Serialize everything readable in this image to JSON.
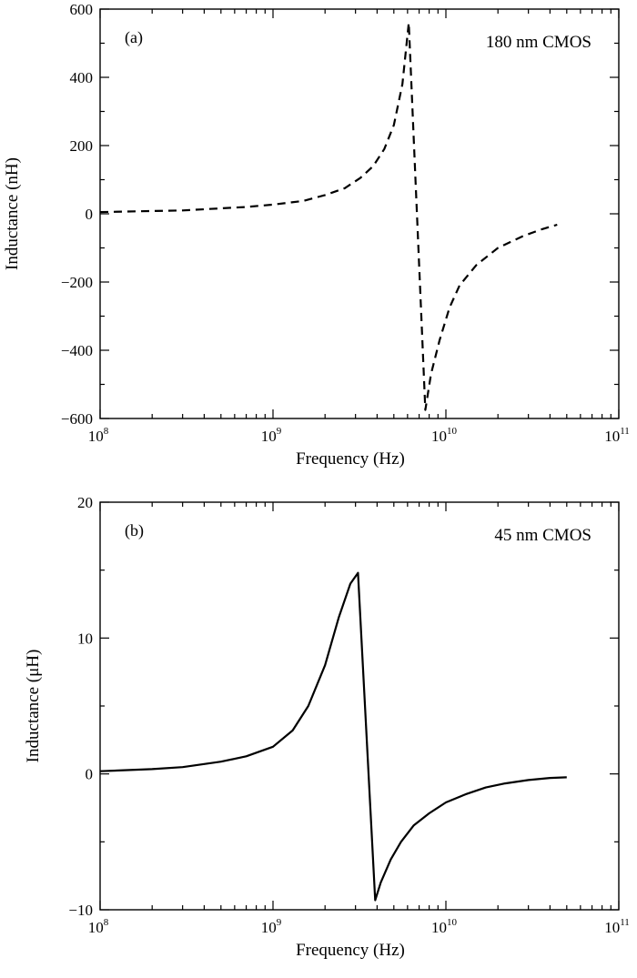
{
  "chart_data": [
    {
      "type": "line",
      "panel_label": "(a)",
      "annotation": "180 nm CMOS",
      "xlabel": "Frequency (Hz)",
      "ylabel": "Inductance  (nH)",
      "xscale": "log",
      "xlim": [
        100000000.0,
        100000000000.0
      ],
      "ylim": [
        -600,
        600
      ],
      "xticks": [
        {
          "base": "10",
          "exp": "8",
          "value": 100000000.0
        },
        {
          "base": "10",
          "exp": "9",
          "value": 1000000000.0
        },
        {
          "base": "10",
          "exp": "10",
          "value": 10000000000.0
        },
        {
          "base": "10",
          "exp": "11",
          "value": 100000000000.0
        }
      ],
      "yticks": [
        "600",
        "400",
        "200",
        "0",
        "−200",
        "−400",
        "−600"
      ],
      "ytick_values": [
        600,
        400,
        200,
        0,
        -200,
        -400,
        -600
      ],
      "line_style": "dashed",
      "series": [
        {
          "x": [
            100000000.0,
            300000000.0,
            700000000.0,
            1000000000.0,
            1500000000.0,
            2000000000.0,
            2600000000.0,
            3200000000.0,
            3800000000.0,
            4400000000.0,
            5000000000.0,
            5600000000.0,
            6100000000.0,
            7600000000.0,
            8200000000.0,
            9200000000.0,
            10500000000.0,
            12000000000.0,
            15000000000.0,
            20000000000.0,
            28000000000.0,
            36000000000.0,
            44000000000.0
          ],
          "y": [
            5,
            10,
            20,
            27,
            38,
            55,
            75,
            105,
            140,
            190,
            260,
            380,
            560,
            -575,
            -470,
            -370,
            -275,
            -210,
            -150,
            -100,
            -65,
            -45,
            -32
          ]
        }
      ]
    },
    {
      "type": "line",
      "panel_label": "(b)",
      "annotation": "45 nm CMOS",
      "xlabel": "Frequency (Hz)",
      "ylabel": "Inductance  (μH)",
      "xscale": "log",
      "xlim": [
        100000000.0,
        100000000000.0
      ],
      "ylim": [
        -10,
        20
      ],
      "xticks": [
        {
          "base": "10",
          "exp": "8",
          "value": 100000000.0
        },
        {
          "base": "10",
          "exp": "9",
          "value": 1000000000.0
        },
        {
          "base": "10",
          "exp": "10",
          "value": 10000000000.0
        },
        {
          "base": "10",
          "exp": "11",
          "value": 100000000000.0
        }
      ],
      "yticks": [
        "20",
        "10",
        "0",
        "−10"
      ],
      "ytick_values": [
        20,
        10,
        0,
        -10
      ],
      "line_style": "solid",
      "series": [
        {
          "x": [
            100000000.0,
            200000000.0,
            300000000.0,
            500000000.0,
            700000000.0,
            1000000000.0,
            1300000000.0,
            1600000000.0,
            2000000000.0,
            2400000000.0,
            2800000000.0,
            3100000000.0,
            3900000000.0,
            4200000000.0,
            4800000000.0,
            5500000000.0,
            6500000000.0,
            8000000000.0,
            10000000000.0,
            13000000000.0,
            17000000000.0,
            22000000000.0,
            30000000000.0,
            40000000000.0,
            50000000000.0
          ],
          "y": [
            0.2,
            0.35,
            0.5,
            0.9,
            1.3,
            2.0,
            3.2,
            5.0,
            8.0,
            11.5,
            14.0,
            14.8,
            -9.3,
            -8.0,
            -6.3,
            -5.0,
            -3.8,
            -2.9,
            -2.1,
            -1.5,
            -1.0,
            -0.7,
            -0.45,
            -0.3,
            -0.25
          ]
        }
      ]
    }
  ]
}
